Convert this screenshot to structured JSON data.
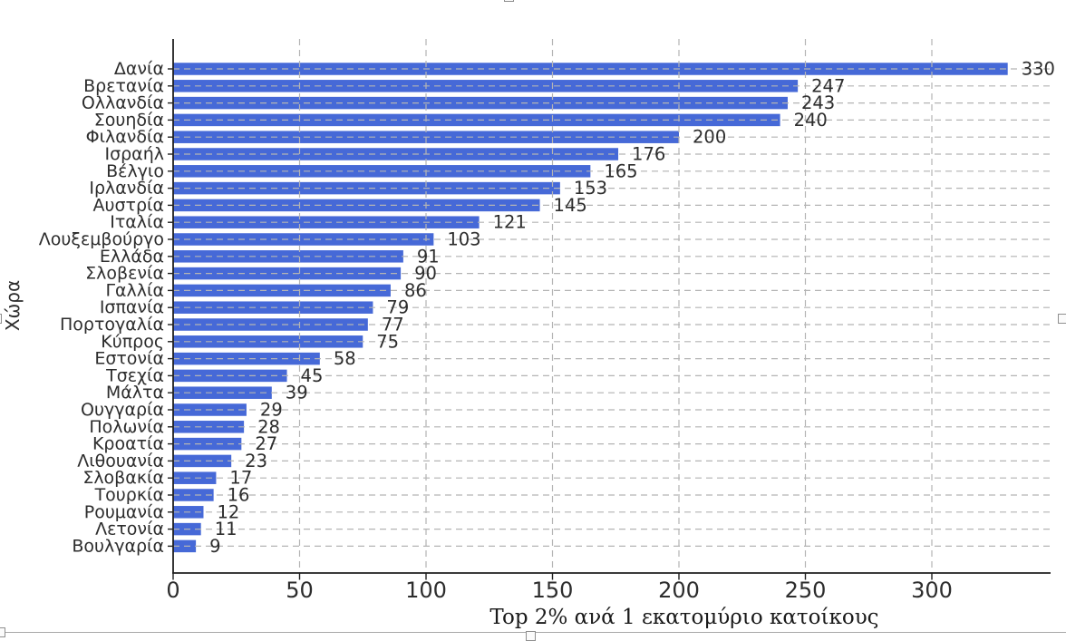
{
  "chart_data": {
    "type": "bar",
    "orientation": "horizontal",
    "title": "",
    "xlabel": "Top 2% ανά 1 εκατομύριο κατοίκους",
    "ylabel": "Χώρα",
    "categories": [
      "Δανία",
      "Βρετανία",
      "Ολλανδία",
      "Σουηδία",
      "Φιλανδία",
      "Ισραήλ",
      "Βέλγιο",
      "Ιρλανδία",
      "Αυστρία",
      "Ιταλία",
      "Λουξεμβούργο",
      "Ελλάδα",
      "Σλοβενία",
      "Γαλλία",
      "Ισπανία",
      "Πορτογαλία",
      "Κύπρος",
      "Εστονία",
      "Τσεχία",
      "Μάλτα",
      "Ουγγαρία",
      "Πολωνία",
      "Κροατία",
      "Λιθουανία",
      "Σλοβακία",
      "Τουρκία",
      "Ρουμανία",
      "Λετονία",
      "Βουλγαρία"
    ],
    "values": [
      330,
      247,
      243,
      240,
      200,
      176,
      165,
      153,
      145,
      121,
      103,
      91,
      90,
      86,
      79,
      77,
      75,
      58,
      45,
      39,
      29,
      28,
      27,
      23,
      17,
      16,
      12,
      11,
      9
    ],
    "xticks": [
      0,
      50,
      100,
      150,
      200,
      250,
      300
    ],
    "xlim": [
      0,
      347
    ],
    "grid": "dashed horizontal per category and vertical per x tick, drawn over bars",
    "legend": null,
    "bar_color": "#4669D7",
    "grid_color": "#b4b4b4",
    "axis_color": "#1f1f1f",
    "text_color": "#2d2d2d"
  },
  "selection_overlay": {
    "description": "image selection handles of the host document editor",
    "handles": [
      "top-center",
      "left-middle",
      "right-middle",
      "bottom-left",
      "bottom-center"
    ],
    "border_color": "#a8a8a8"
  }
}
